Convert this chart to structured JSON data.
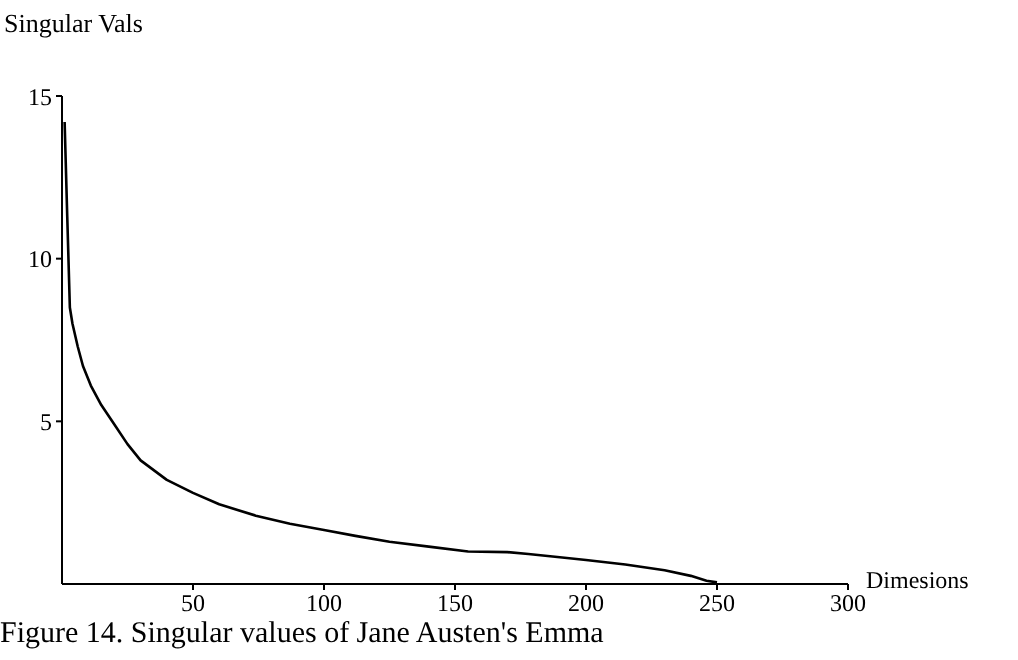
{
  "chart_data": {
    "type": "line",
    "ylabel": "Singular Vals",
    "xlabel": "Dimesions",
    "annotations": [
      "Figure 14.  Singular values of Jane Austen's Emma"
    ],
    "x": [
      1,
      2,
      3,
      4,
      6,
      8,
      11,
      15,
      20,
      25,
      30,
      40,
      50,
      60,
      74,
      87,
      100,
      112,
      125,
      140,
      155,
      170,
      178,
      190,
      200,
      215,
      230,
      240,
      246,
      250
    ],
    "series": [
      {
        "color": "#000000",
        "values": [
          14.2,
          11.3,
          8.5,
          8.0,
          7.3,
          6.7,
          6.1,
          5.5,
          4.9,
          4.3,
          3.8,
          3.2,
          2.8,
          2.45,
          2.1,
          1.85,
          1.66,
          1.48,
          1.3,
          1.15,
          1.0,
          0.98,
          0.92,
          0.82,
          0.74,
          0.6,
          0.42,
          0.25,
          0.1,
          0.05
        ]
      }
    ],
    "xlim": [
      0,
      300
    ],
    "xticks": [
      50,
      100,
      150,
      200,
      250,
      300
    ],
    "ylim": [
      0,
      15
    ],
    "yticks": [
      5,
      10,
      15
    ],
    "grid": false,
    "legend": false
  }
}
